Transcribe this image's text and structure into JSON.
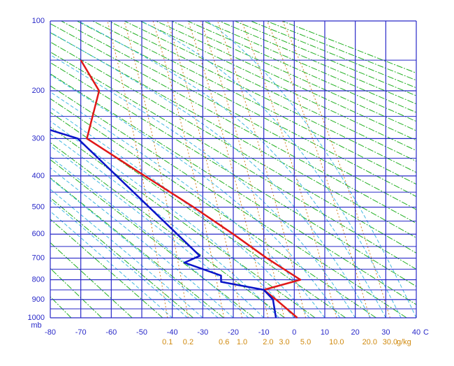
{
  "chart_data": {
    "type": "thermo",
    "xlim": [
      -80,
      40
    ],
    "xticks": [
      -80,
      -70,
      -60,
      -50,
      -40,
      -30,
      -20,
      -10,
      0,
      10,
      20,
      30,
      40
    ],
    "x_unit": "C",
    "ylim": [
      1000,
      100
    ],
    "yticks": [
      100,
      200,
      300,
      400,
      500,
      600,
      700,
      800,
      900,
      1000
    ],
    "minor_yticks": [
      150,
      250,
      350,
      450,
      550,
      650,
      750,
      850,
      950
    ],
    "y_unit": "mb",
    "mixing_ratios": [
      0.1,
      0.2,
      0.6,
      {
        "value": 1,
        "label": "1.0"
      },
      {
        "value": 2,
        "label": "2.0"
      },
      {
        "value": 3,
        "label": "3.0"
      },
      {
        "value": 5,
        "label": "5.0"
      },
      {
        "value": 10,
        "label": "10.0"
      },
      {
        "value": 20,
        "label": "20.0"
      },
      {
        "value": 30,
        "label": "30.0"
      }
    ],
    "mixing_ratio_unit": "g/kg",
    "grid": true,
    "series": [
      {
        "color": "#e01818",
        "x": [
          -70,
          -64,
          -68,
          -49,
          -33,
          -20,
          -9,
          2,
          -10,
          -6,
          1
        ],
        "values": [
          150,
          200,
          300,
          400,
          500,
          600,
          700,
          800,
          850,
          900,
          1000
        ]
      },
      {
        "color": "#0a14c8",
        "x": [
          -80,
          -71,
          -31,
          -36,
          -24,
          -24,
          -10,
          -7,
          -6
        ],
        "values": [
          280,
          300,
          690,
          720,
          780,
          810,
          850,
          900,
          1000
        ]
      }
    ]
  }
}
